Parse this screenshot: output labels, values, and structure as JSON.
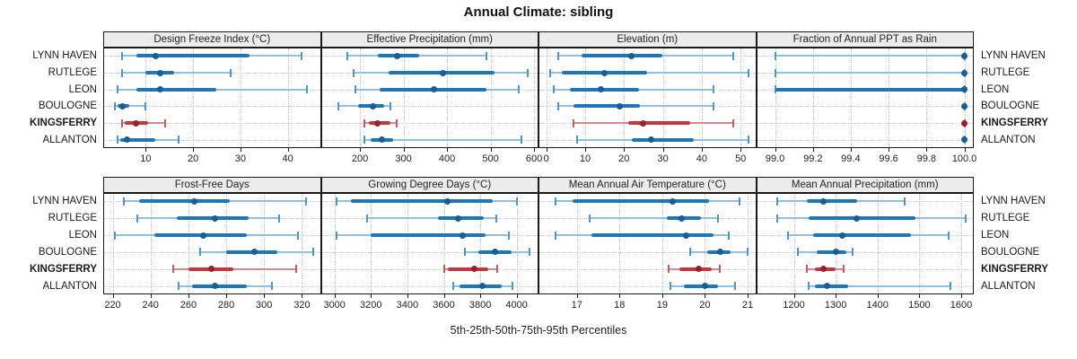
{
  "title": "Annual Climate: sibling",
  "footer": "5th-25th-50th-75th-95th Percentiles",
  "sites": [
    "LYNN HAVEN",
    "RUTLEGE",
    "LEON",
    "BOULOGNE",
    "KINGSFERRY",
    "ALLANTON"
  ],
  "highlight_site": "KINGSFERRY",
  "colors": {
    "blue_light": "#93c0e0",
    "blue_mid": "#2176b5",
    "blue_cap": "#4b97c9",
    "blue_dark": "#175e94",
    "red_light": "#d4898c",
    "red_mid": "#bd3a40",
    "red_cap": "#c45c60",
    "red_dark": "#9c2028",
    "grid": "#c6c6c6",
    "border": "#1a1a1a",
    "strip_bg": "#ececec"
  },
  "chart_data": {
    "type": "interval",
    "subtype": "trellis-percentile-intervals",
    "statistic_labels": [
      "5th",
      "25th",
      "50th",
      "75th",
      "95th"
    ],
    "categories": [
      "LYNN HAVEN",
      "RUTLEGE",
      "LEON",
      "BOULOGNE",
      "KINGSFERRY",
      "ALLANTON"
    ],
    "highlight_category": "KINGSFERRY",
    "legend_position": "none",
    "grid": "dotted",
    "layout": {
      "rows": 2,
      "cols": 4
    },
    "panels": [
      {
        "title": "Design Freeze Index (°C)",
        "row": 0,
        "col": 0,
        "xlim": [
          1,
          47
        ],
        "ticks": [
          10,
          20,
          30,
          40
        ],
        "tick_labels": [
          "10",
          "20",
          "30",
          "40"
        ],
        "series": [
          {
            "name": "LYNN HAVEN",
            "values": [
              5,
              8,
              12,
              32,
              43
            ]
          },
          {
            "name": "RUTLEGE",
            "values": [
              5,
              10,
              13,
              16,
              28
            ]
          },
          {
            "name": "LEON",
            "values": [
              4,
              8,
              13,
              25,
              44
            ]
          },
          {
            "name": "BOULOGNE",
            "values": [
              3.5,
              4,
              5,
              6.5,
              10
            ]
          },
          {
            "name": "KINGSFERRY",
            "values": [
              5,
              5.5,
              8,
              10.5,
              14
            ]
          },
          {
            "name": "ALLANTON",
            "values": [
              4,
              4.5,
              6,
              12,
              17
            ]
          }
        ]
      },
      {
        "title": "Effective Precipitation (mm)",
        "row": 0,
        "col": 1,
        "xlim": [
          110,
          610
        ],
        "ticks": [
          200,
          300,
          400,
          500,
          600
        ],
        "tick_labels": [
          "200",
          "300",
          "400",
          "500",
          "600"
        ],
        "series": [
          {
            "name": "LYNN HAVEN",
            "values": [
              170,
              240,
              285,
              335,
              490
            ]
          },
          {
            "name": "RUTLEGE",
            "values": [
              185,
              265,
              390,
              510,
              585
            ]
          },
          {
            "name": "LEON",
            "values": [
              190,
              245,
              370,
              490,
              565
            ]
          },
          {
            "name": "BOULOGNE",
            "values": [
              150,
              195,
              230,
              255,
              270
            ]
          },
          {
            "name": "KINGSFERRY",
            "values": [
              210,
              220,
              240,
              270,
              285
            ]
          },
          {
            "name": "ALLANTON",
            "values": [
              210,
              225,
              250,
              275,
              570
            ]
          }
        ]
      },
      {
        "title": "Elevation (m)",
        "row": 0,
        "col": 2,
        "xlim": [
          -2,
          54
        ],
        "ticks": [
          0,
          10,
          20,
          30,
          40,
          50
        ],
        "tick_labels": [
          "0",
          "10",
          "20",
          "30",
          "40",
          "50"
        ],
        "series": [
          {
            "name": "LYNN HAVEN",
            "values": [
              3,
              9,
              22,
              30,
              48
            ]
          },
          {
            "name": "RUTLEGE",
            "values": [
              1,
              4,
              15,
              26,
              52
            ]
          },
          {
            "name": "LEON",
            "values": [
              2,
              6,
              14,
              24,
              43
            ]
          },
          {
            "name": "BOULOGNE",
            "values": [
              3,
              7,
              19,
              24,
              43
            ]
          },
          {
            "name": "KINGSFERRY",
            "values": [
              7,
              21,
              25,
              37,
              48
            ]
          },
          {
            "name": "ALLANTON",
            "values": [
              8,
              22,
              27,
              38,
              52
            ]
          }
        ]
      },
      {
        "title": "Fraction of Annual PPT as Rain",
        "row": 0,
        "col": 3,
        "xlim": [
          98.9,
          100.05
        ],
        "ticks": [
          99.0,
          99.2,
          99.4,
          99.6,
          99.8,
          100.0
        ],
        "tick_labels": [
          "99.0",
          "99.2",
          "99.4",
          "99.6",
          "99.8",
          "100.0"
        ],
        "series": [
          {
            "name": "LYNN HAVEN",
            "values": [
              99,
              100,
              100,
              100,
              100
            ]
          },
          {
            "name": "RUTLEGE",
            "values": [
              99,
              100,
              100,
              100,
              100
            ]
          },
          {
            "name": "LEON",
            "values": [
              99,
              99,
              100,
              100,
              100
            ]
          },
          {
            "name": "BOULOGNE",
            "values": [
              100,
              100,
              100,
              100,
              100
            ]
          },
          {
            "name": "KINGSFERRY",
            "values": [
              100,
              100,
              100,
              100,
              100
            ]
          },
          {
            "name": "ALLANTON",
            "values": [
              100,
              100,
              100,
              100,
              100
            ]
          }
        ]
      },
      {
        "title": "Frost-Free Days",
        "row": 1,
        "col": 0,
        "xlim": [
          215,
          330
        ],
        "ticks": [
          220,
          240,
          260,
          280,
          300,
          320
        ],
        "tick_labels": [
          "220",
          "240",
          "260",
          "280",
          "300",
          "320"
        ],
        "series": [
          {
            "name": "LYNN HAVEN",
            "values": [
              226,
              234,
              263,
              282,
              322
            ]
          },
          {
            "name": "RUTLEGE",
            "values": [
              233,
              254,
              274,
              292,
              308
            ]
          },
          {
            "name": "LEON",
            "values": [
              221,
              242,
              268,
              291,
              318
            ]
          },
          {
            "name": "BOULOGNE",
            "values": [
              266,
              280,
              295,
              307,
              326
            ]
          },
          {
            "name": "KINGSFERRY",
            "values": [
              252,
              260,
              272,
              284,
              317
            ]
          },
          {
            "name": "ALLANTON",
            "values": [
              255,
              262,
              274,
              291,
              304
            ]
          }
        ]
      },
      {
        "title": "Growing Degree Days (°C)",
        "row": 1,
        "col": 1,
        "xlim": [
          2925,
          4120
        ],
        "ticks": [
          3000,
          3200,
          3400,
          3600,
          3800,
          4000
        ],
        "tick_labels": [
          "3000",
          "3200",
          "3400",
          "3600",
          "3800",
          "4000"
        ],
        "series": [
          {
            "name": "LYNN HAVEN",
            "values": [
              3010,
              3090,
              3620,
              3870,
              4000
            ]
          },
          {
            "name": "RUTLEGE",
            "values": [
              3180,
              3570,
              3680,
              3820,
              3890
            ]
          },
          {
            "name": "LEON",
            "values": [
              3010,
              3200,
              3705,
              3830,
              3955
            ]
          },
          {
            "name": "BOULOGNE",
            "values": [
              3715,
              3790,
              3880,
              3970,
              4070
            ]
          },
          {
            "name": "KINGSFERRY",
            "values": [
              3600,
              3620,
              3765,
              3845,
              3895
            ]
          },
          {
            "name": "ALLANTON",
            "values": [
              3650,
              3685,
              3810,
              3920,
              3975
            ]
          }
        ]
      },
      {
        "title": "Mean Annual Air Temperature (°C)",
        "row": 1,
        "col": 2,
        "xlim": [
          16.1,
          21.2
        ],
        "ticks": [
          17,
          18,
          19,
          20,
          21
        ],
        "tick_labels": [
          "17",
          "18",
          "19",
          "20",
          "21"
        ],
        "series": [
          {
            "name": "LYNN HAVEN",
            "values": [
              16.5,
              16.9,
              19.25,
              20.1,
              20.8
            ]
          },
          {
            "name": "RUTLEGE",
            "values": [
              17.3,
              19.1,
              19.45,
              19.9,
              20.3
            ]
          },
          {
            "name": "LEON",
            "values": [
              16.5,
              17.35,
              19.55,
              20.2,
              20.55
            ]
          },
          {
            "name": "BOULOGNE",
            "values": [
              19.65,
              20.05,
              20.35,
              20.6,
              21.0
            ]
          },
          {
            "name": "KINGSFERRY",
            "values": [
              19.15,
              19.4,
              19.85,
              20.15,
              20.35
            ]
          },
          {
            "name": "ALLANTON",
            "values": [
              19.2,
              19.5,
              20.0,
              20.3,
              20.7
            ]
          }
        ]
      },
      {
        "title": "Mean Annual Precipitation (mm)",
        "row": 1,
        "col": 3,
        "xlim": [
          1110,
          1630
        ],
        "ticks": [
          1200,
          1300,
          1400,
          1500,
          1600
        ],
        "tick_labels": [
          "1200",
          "1300",
          "1400",
          "1500",
          "1600"
        ],
        "series": [
          {
            "name": "LYNN HAVEN",
            "values": [
              1160,
              1230,
              1270,
              1350,
              1465
            ]
          },
          {
            "name": "RUTLEGE",
            "values": [
              1160,
              1235,
              1350,
              1490,
              1610
            ]
          },
          {
            "name": "LEON",
            "values": [
              1185,
              1245,
              1315,
              1480,
              1570
            ]
          },
          {
            "name": "BOULOGNE",
            "values": [
              1210,
              1255,
              1300,
              1325,
              1340
            ]
          },
          {
            "name": "KINGSFERRY",
            "values": [
              1230,
              1250,
              1270,
              1300,
              1320
            ]
          },
          {
            "name": "ALLANTON",
            "values": [
              1235,
              1250,
              1280,
              1330,
              1575
            ]
          }
        ]
      }
    ]
  }
}
